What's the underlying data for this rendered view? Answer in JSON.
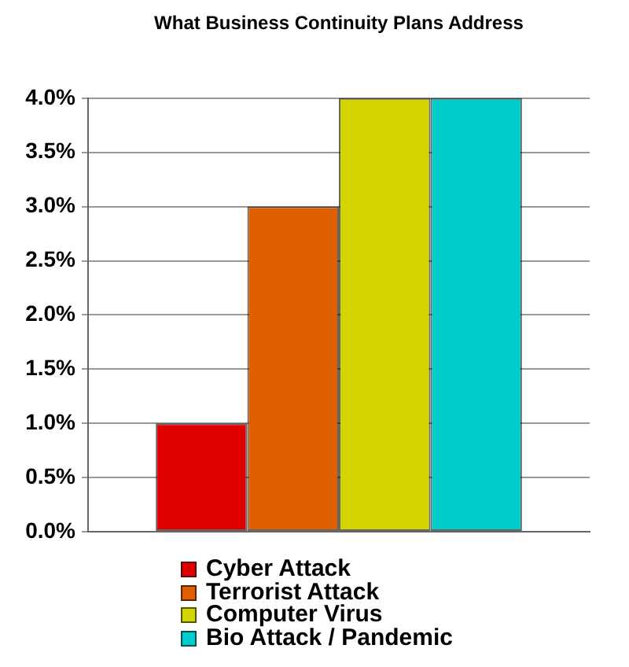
{
  "chart_data": {
    "type": "bar",
    "title": "What Business Continuity Plans Address",
    "categories": [
      null
    ],
    "series": [
      {
        "name": "Cyber Attack",
        "color": "#e00000",
        "values": [
          1.0
        ]
      },
      {
        "name": "Terrorist Attack",
        "color": "#e06000",
        "values": [
          3.0
        ]
      },
      {
        "name": "Computer Virus",
        "color": "#d4d400",
        "values": [
          4.0
        ]
      },
      {
        "name": "Bio Attack / Pandemic",
        "color": "#00cccc",
        "values": [
          4.0
        ]
      }
    ],
    "ylim": [
      0,
      4
    ],
    "yticks": [
      {
        "value": 0,
        "label": "0.0%"
      },
      {
        "value": 0.5,
        "label": "0.5%"
      },
      {
        "value": 1,
        "label": "1.0%"
      },
      {
        "value": 1.5,
        "label": "1.5%"
      },
      {
        "value": 2,
        "label": "2.0%"
      },
      {
        "value": 2.5,
        "label": "2.5%"
      },
      {
        "value": 3,
        "label": "3.0%"
      },
      {
        "value": 3.5,
        "label": "3.5%"
      },
      {
        "value": 4,
        "label": "4.0%"
      }
    ],
    "grid": "y",
    "legend": "bottom"
  }
}
